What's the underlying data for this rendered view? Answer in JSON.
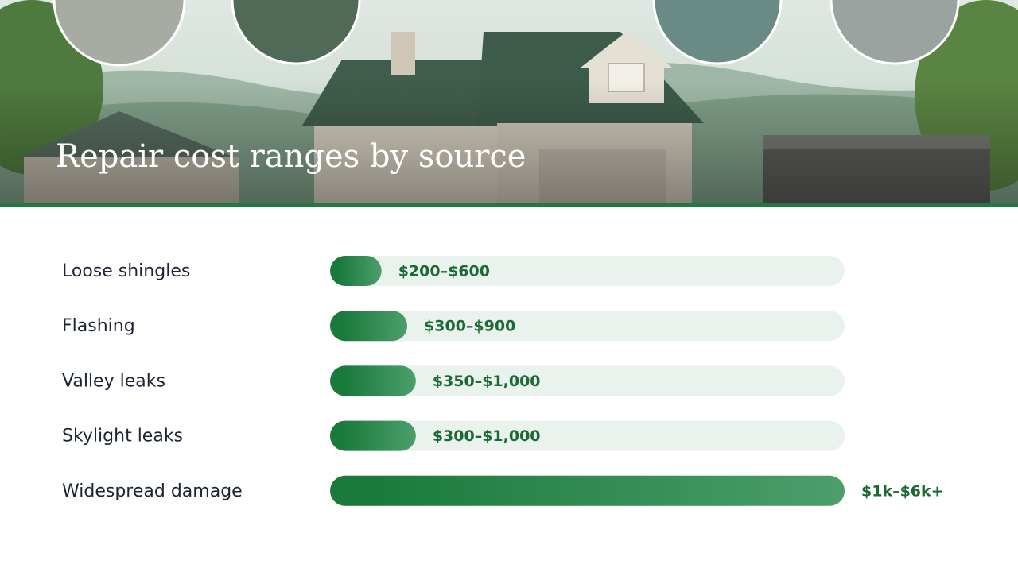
{
  "chart_data": {
    "type": "range-bar",
    "title": "Repair cost ranges by source",
    "categories": [
      "Loose shingles",
      "Flashing",
      "Valley leaks",
      "Skylight leaks",
      "Widespread damage"
    ],
    "low": [
      200,
      300,
      350,
      300,
      1000
    ],
    "high": [
      600,
      900,
      1000,
      1000,
      6000
    ],
    "value_labels": [
      "$200–$600",
      "$300–$900",
      "$350–$1,000",
      "$300–$1,000",
      "$1k–$6k+"
    ],
    "xlim": [
      0,
      6000
    ],
    "color": "#1a7a3c",
    "track_color": "#e9f2ec"
  }
}
